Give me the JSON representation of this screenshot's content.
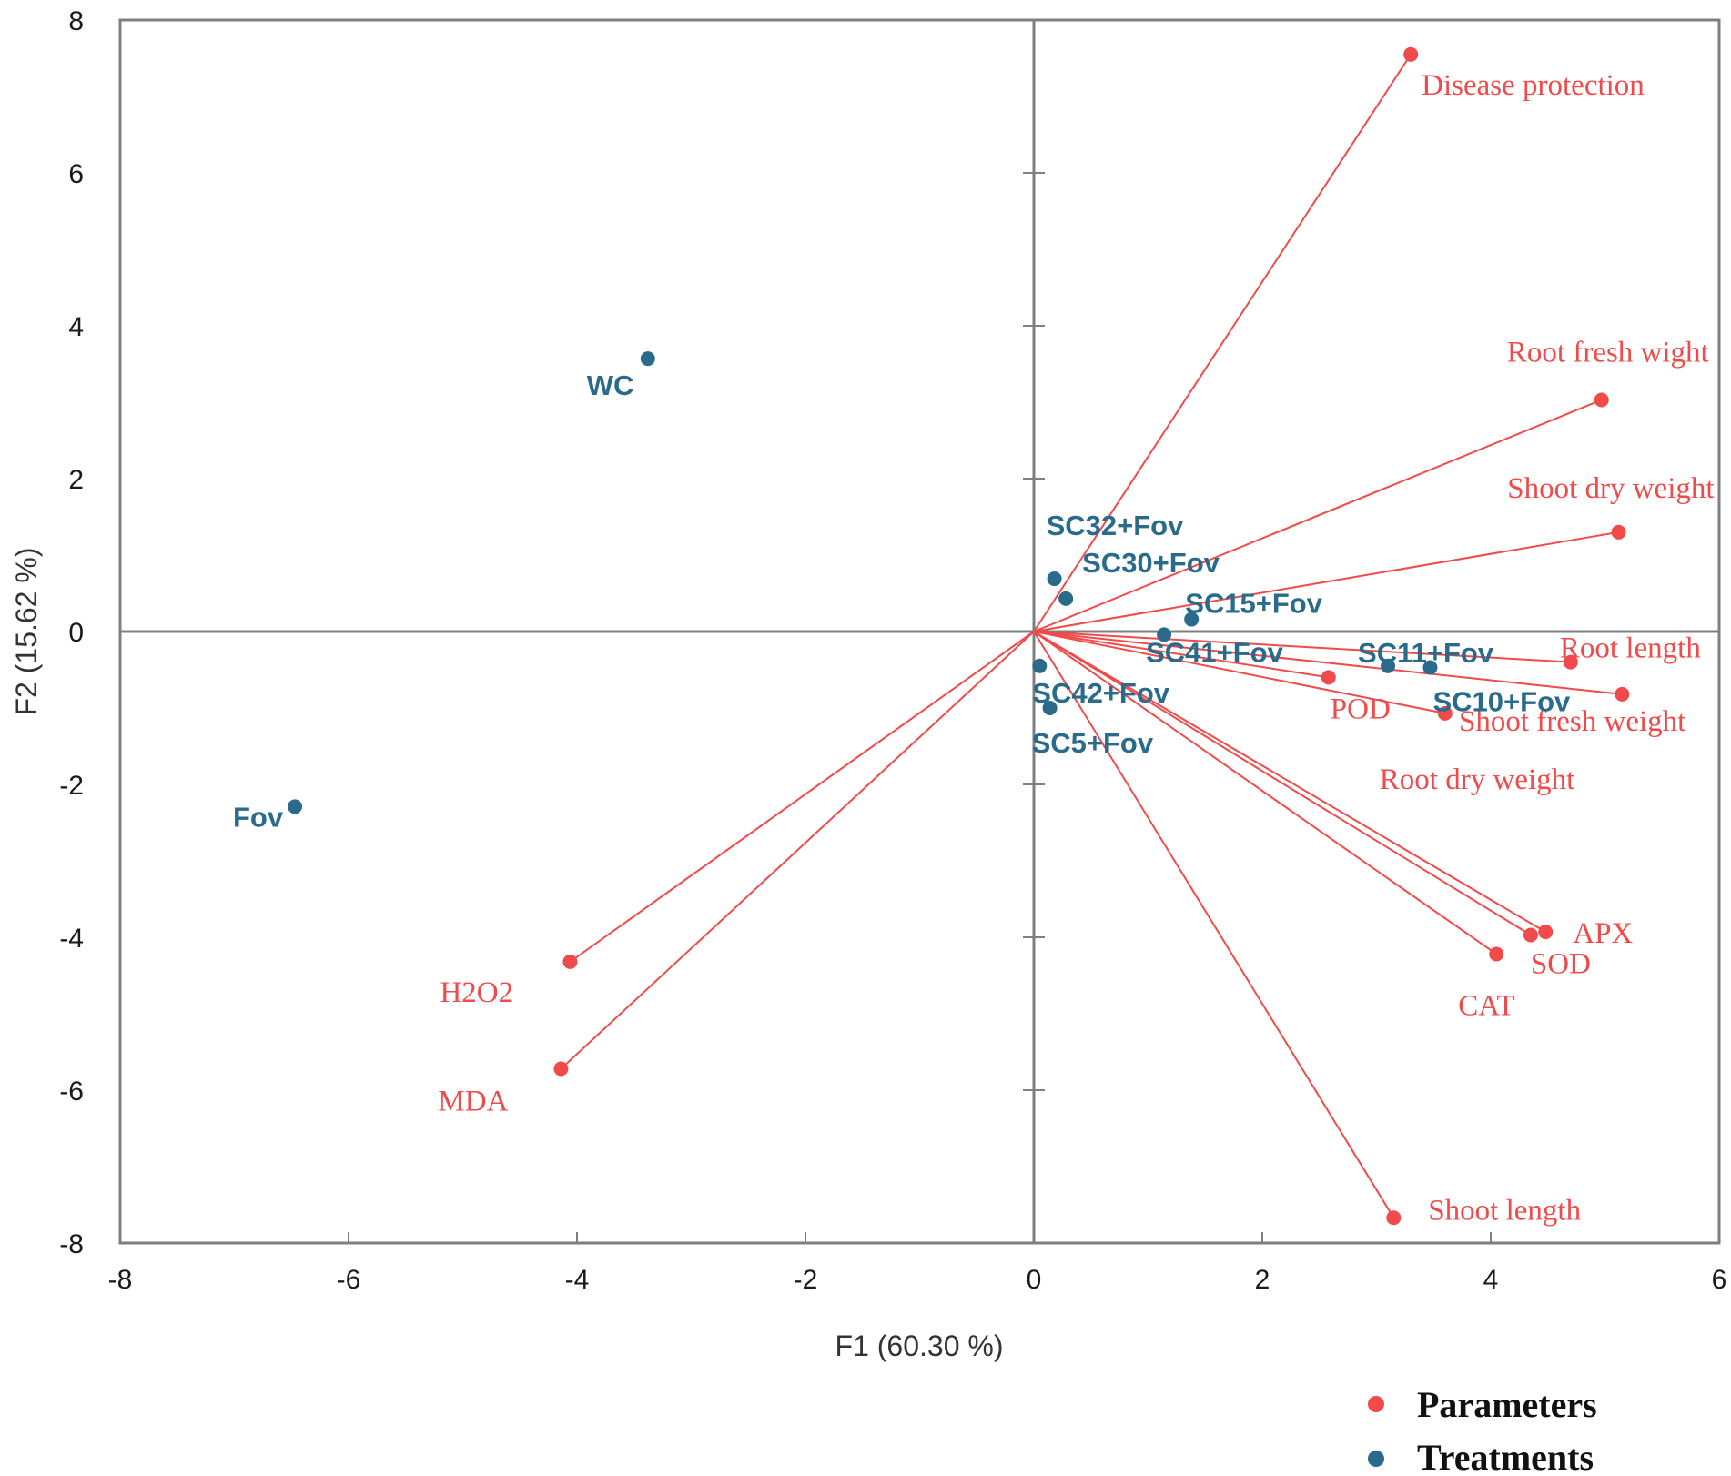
{
  "chart_data": {
    "type": "scatter",
    "subtype": "pca-biplot",
    "xlabel": "F1 (60.30 %)",
    "ylabel": "F2 (15.62 %)",
    "xlim": [
      -8,
      6
    ],
    "ylim": [
      -8,
      8
    ],
    "xticks": [
      "-8",
      "-6",
      "-4",
      "-2",
      "0",
      "2",
      "4",
      "6"
    ],
    "yticks": [
      "8",
      "6",
      "4",
      "2",
      "0",
      "-2",
      "-4",
      "-6",
      "-8"
    ],
    "legend": [
      {
        "label": "Parameters",
        "color": "#f04a4a"
      },
      {
        "label": "Treatments",
        "color": "#2a6b8c"
      }
    ],
    "legend_position": "bottom-right",
    "colors": {
      "parameters": "#f04a4a",
      "treatments": "#2a6b8c",
      "axis": "#7f7f7f"
    },
    "parameters": [
      {
        "label": "Disease protection",
        "x": 3.3,
        "y": 7.55
      },
      {
        "label": "Root fresh wight",
        "x": 4.97,
        "y": 3.03
      },
      {
        "label": "Shoot dry weight",
        "x": 5.12,
        "y": 1.3
      },
      {
        "label": "Root length",
        "x": 4.7,
        "y": -0.4
      },
      {
        "label": "Shoot fresh weight",
        "x": 5.15,
        "y": -0.82
      },
      {
        "label": "POD",
        "x": 2.58,
        "y": -0.6
      },
      {
        "label": "Root dry weight",
        "x": 3.6,
        "y": -1.07
      },
      {
        "label": "APX",
        "x": 4.48,
        "y": -3.93
      },
      {
        "label": "SOD",
        "x": 4.35,
        "y": -3.97
      },
      {
        "label": "CAT",
        "x": 4.05,
        "y": -4.22
      },
      {
        "label": "Shoot length",
        "x": 3.15,
        "y": -7.67
      },
      {
        "label": "H2O2",
        "x": -4.06,
        "y": -4.32
      },
      {
        "label": "MDA",
        "x": -4.14,
        "y": -5.72
      }
    ],
    "treatments": [
      {
        "label": "WC",
        "x": -3.38,
        "y": 3.57
      },
      {
        "label": "Fov",
        "x": -6.47,
        "y": -2.29
      },
      {
        "label": "SC32+Fov",
        "x": 0.18,
        "y": 0.69
      },
      {
        "label": "SC30+Fov",
        "x": 0.28,
        "y": 0.43
      },
      {
        "label": "SC15+Fov",
        "x": 1.38,
        "y": 0.16
      },
      {
        "label": "SC41+Fov",
        "x": 1.14,
        "y": -0.04
      },
      {
        "label": "SC11+Fov",
        "x": 3.1,
        "y": -0.45
      },
      {
        "label": "SC10+Fov",
        "x": 3.47,
        "y": -0.47
      },
      {
        "label": "SC42+Fov",
        "x": 0.05,
        "y": -0.45
      },
      {
        "label": "SC5+Fov",
        "x": 0.14,
        "y": -1.0
      }
    ]
  }
}
